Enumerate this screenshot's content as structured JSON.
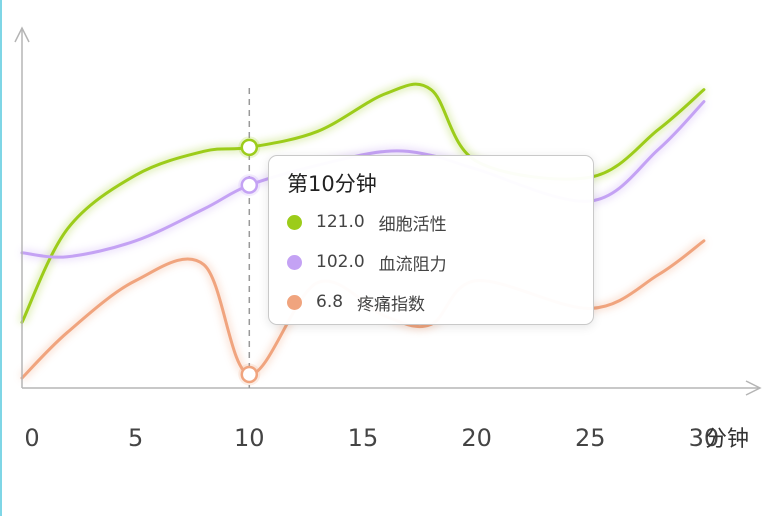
{
  "chart_data": {
    "type": "line",
    "x": [
      0,
      2,
      5,
      8,
      10,
      13,
      16,
      18,
      20,
      25,
      28,
      30
    ],
    "xlim": [
      0,
      31.5
    ],
    "xticks": [
      "0",
      "5",
      "10",
      "15",
      "20",
      "25",
      "30"
    ],
    "xunit": "分钟",
    "ylim": [
      0,
      180
    ],
    "grid": false,
    "marker_x": 10,
    "series": [
      {
        "name": "细胞活性",
        "color": "#9ccc1a",
        "values": [
          33,
          80,
          107,
          119,
          121,
          129,
          148,
          150,
          114,
          106,
          130,
          150
        ]
      },
      {
        "name": "血流阻力",
        "color": "#c4a2f4",
        "values": [
          68,
          66,
          74,
          90,
          102,
          112,
          119,
          117,
          110,
          94,
          120,
          144
        ]
      },
      {
        "name": "疼痛指数",
        "color": "#f0a47e",
        "values": [
          5,
          28,
          54,
          62,
          6.8,
          53,
          36,
          32,
          54,
          40,
          57,
          74
        ]
      }
    ]
  },
  "tooltip": {
    "title": "第10分钟",
    "rows": [
      {
        "value": "121.0",
        "label": "细胞活性",
        "color": "#9ccc1a"
      },
      {
        "value": "102.0",
        "label": "血流阻力",
        "color": "#c4a2f4"
      },
      {
        "value": "6.8",
        "label": "疼痛指数",
        "color": "#f0a47e"
      }
    ]
  }
}
